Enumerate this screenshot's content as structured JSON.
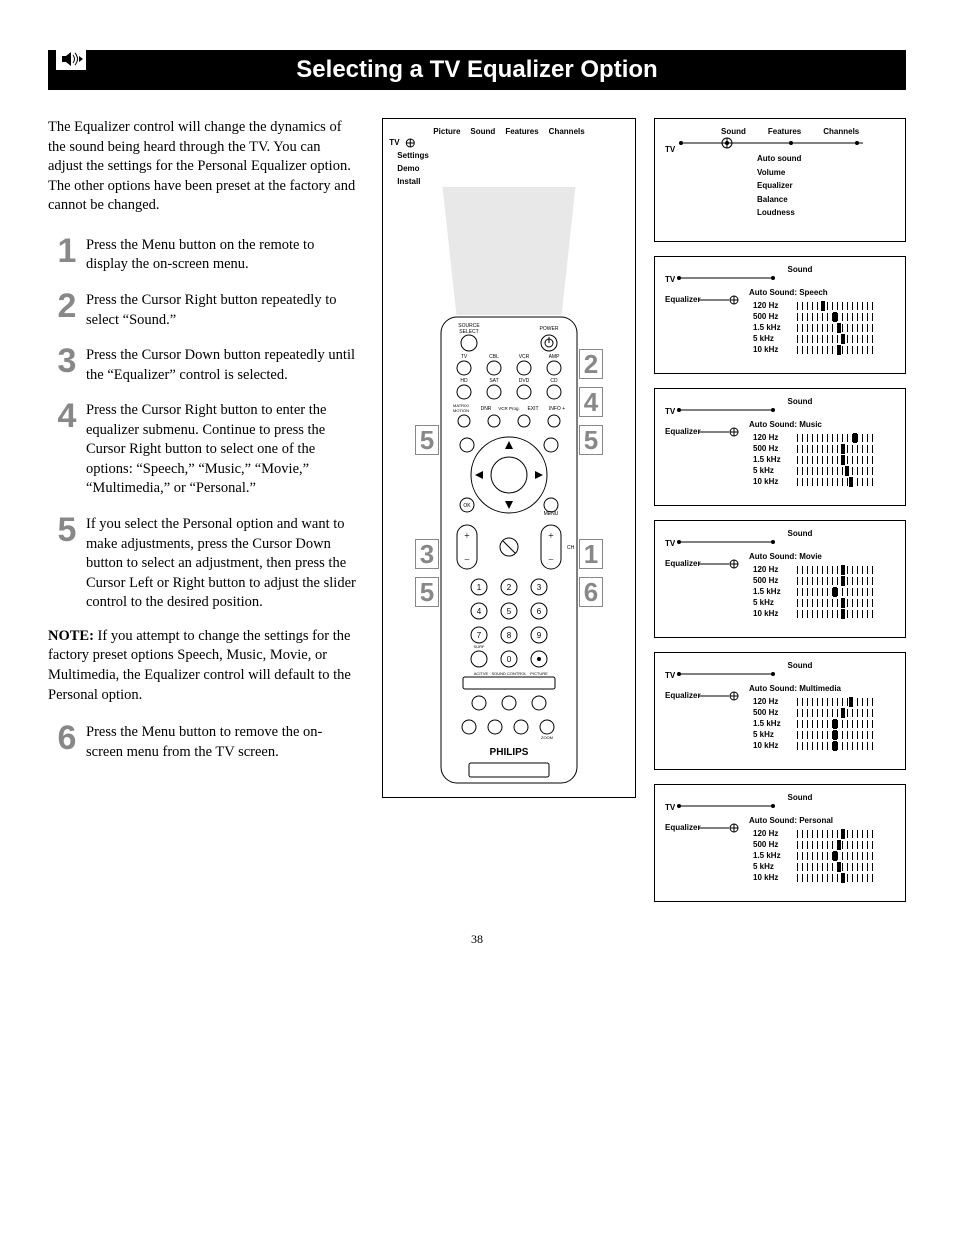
{
  "title": "Selecting a TV Equalizer Option",
  "page_number": "38",
  "intro": "The Equalizer control will change the dynamics of the sound being heard through the TV. You can adjust the settings for the Personal Equalizer option. The other options have been preset at the factory and cannot be changed.",
  "steps": {
    "s1": {
      "n": "1",
      "t": "Press the Menu button on the remote to display the on-screen menu."
    },
    "s2": {
      "n": "2",
      "t": "Press the Cursor Right button repeatedly to select “Sound.”"
    },
    "s3": {
      "n": "3",
      "t": "Press the Cursor Down button repeatedly until the “Equalizer” control is selected."
    },
    "s4": {
      "n": "4",
      "t": "Press the Cursor Right button to enter the equalizer submenu. Continue to press the Cursor Right button to select one of the options: “Speech,” “Music,” “Movie,” “Multimedia,” or “Personal.”"
    },
    "s5": {
      "n": "5",
      "t": "If you select the Personal option and want to make adjustments, press the Cursor Down button to select an adjustment, then press the Cursor Left or Right button to adjust the slider control to the desired position."
    },
    "s6": {
      "n": "6",
      "t": "Press the Menu button to remove the on-screen menu from the TV screen."
    }
  },
  "note_label": "NOTE:",
  "note_text": " If you attempt to change the settings for the factory preset options Speech, Music, Movie, or Multimedia, the Equalizer control will default to the Personal option.",
  "top_menu": {
    "tabs": [
      "Picture",
      "Sound",
      "Features",
      "Channels"
    ],
    "tv": "TV",
    "side": [
      "Settings",
      "Demo",
      "Install"
    ]
  },
  "panel1": {
    "tabs": [
      "Sound",
      "Features",
      "Channels"
    ],
    "tv": "TV",
    "items": [
      "Auto sound",
      "Volume",
      "Equalizer",
      "Balance",
      "Loudness"
    ]
  },
  "eq_common": {
    "sound": "Sound",
    "tv": "TV",
    "equalizer": "Equalizer",
    "freqs": [
      "120 Hz",
      "500 Hz",
      "1.5 kHz",
      "5 kHz",
      "10 kHz"
    ]
  },
  "eq_panels": {
    "speech": {
      "title": "Auto Sound: Speech",
      "vals": [
        0.3,
        0.45,
        0.5,
        0.55,
        0.5
      ]
    },
    "music": {
      "title": "Auto Sound: Music",
      "vals": [
        0.7,
        0.55,
        0.55,
        0.6,
        0.65
      ]
    },
    "movie": {
      "title": "Auto Sound: Movie",
      "vals": [
        0.55,
        0.55,
        0.45,
        0.55,
        0.55
      ]
    },
    "multimedia": {
      "title": "Auto Sound: Multimedia",
      "vals": [
        0.65,
        0.55,
        0.45,
        0.45,
        0.45
      ]
    },
    "personal": {
      "title": "Auto Sound: Personal",
      "vals": [
        0.55,
        0.5,
        0.45,
        0.5,
        0.55
      ]
    }
  },
  "remote": {
    "brand": "PHILIPS",
    "labels": {
      "source": "SOURCE SELECT",
      "power": "POWER",
      "tv": "TV",
      "cbl": "CBL",
      "vcr": "VCR",
      "amp": "AMP",
      "hd": "HD",
      "sat": "SAT",
      "dvd": "DVD",
      "cd": "CD",
      "matrix": "MATRIX/MOTION",
      "dnr": "DNR",
      "vcrprog": "VCR Prog.",
      "exit": "EXIT",
      "info": "INFO +",
      "ok": "OK",
      "menu": "MENU",
      "ch": "CH",
      "surf": "SURF",
      "active": "ACITVE",
      "soundctl": "SOUND CONTROL",
      "picture": "PICTURE",
      "zoom": "ZOOM"
    },
    "callouts": {
      "c1": "1",
      "c2": "2",
      "c3": "3",
      "c4": "4",
      "c5a": "5",
      "c5b": "5",
      "c5c": "5",
      "c6": "6"
    }
  },
  "colors": {
    "bg": "#ffffff",
    "text": "#000000",
    "title_bg": "#000000",
    "title_fg": "#ffffff",
    "step_num": "#888888",
    "border": "#000000"
  }
}
